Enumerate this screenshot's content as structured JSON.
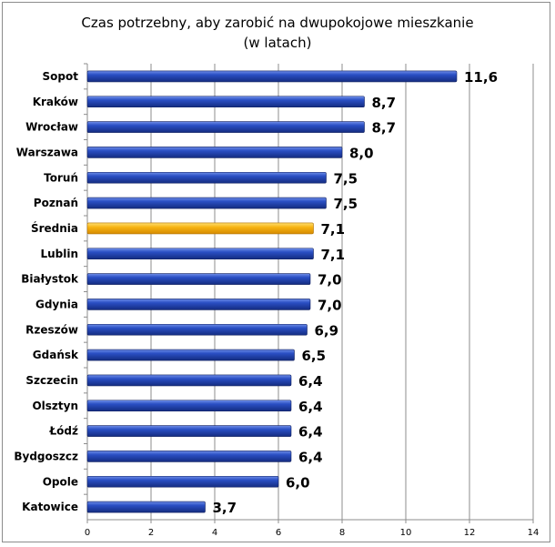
{
  "chart_data": {
    "type": "bar",
    "orientation": "horizontal",
    "title": "Czas potrzebny, aby zarobić na dwupokojowe mieszkanie",
    "subtitle": "(w latach)",
    "categories": [
      "Sopot",
      "Kraków",
      "Wrocław",
      "Warszawa",
      "Toruń",
      "Poznań",
      "Średnia",
      "Lublin",
      "Białystok",
      "Gdynia",
      "Rzeszów",
      "Gdańsk",
      "Szczecin",
      "Olsztyn",
      "Łódź",
      "Bydgoszcz",
      "Opole",
      "Katowice"
    ],
    "values": [
      11.6,
      8.7,
      8.7,
      8.0,
      7.5,
      7.5,
      7.1,
      7.1,
      7.0,
      7.0,
      6.9,
      6.5,
      6.4,
      6.4,
      6.4,
      6.4,
      6.0,
      3.7
    ],
    "labels": [
      "11,6",
      "8,7",
      "8,7",
      "8,0",
      "7,5",
      "7,5",
      "7,1",
      "7,1",
      "7,0",
      "7,0",
      "6,9",
      "6,5",
      "6,4",
      "6,4",
      "6,4",
      "6,4",
      "6,0",
      "3,7"
    ],
    "xlim": [
      0,
      14
    ],
    "xticks": [
      "0",
      "2",
      "4",
      "6",
      "8",
      "10",
      "12",
      "14"
    ],
    "grid": true,
    "legend": "none",
    "colors": {
      "bar": "#1f3fa8",
      "highlight": "#f5a800",
      "highlight_category": "Średnia",
      "grid": "#8c8c8c"
    }
  }
}
